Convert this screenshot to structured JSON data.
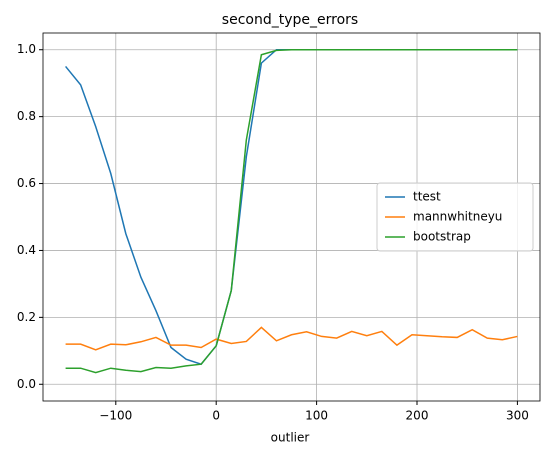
{
  "chart_data": {
    "type": "line",
    "title": "second_type_errors",
    "x_label": "outlier",
    "x": [
      -150,
      -135,
      -120,
      -105,
      -90,
      -75,
      -60,
      -45,
      -30,
      -15,
      0,
      15,
      30,
      45,
      60,
      75,
      90,
      105,
      120,
      135,
      150,
      165,
      180,
      195,
      210,
      225,
      240,
      255,
      270,
      285,
      300
    ],
    "series": [
      {
        "name": "ttest",
        "color": "#1f77b4",
        "values": [
          0.95,
          0.895,
          0.77,
          0.63,
          0.45,
          0.32,
          0.22,
          0.11,
          0.075,
          0.06,
          0.115,
          0.28,
          0.68,
          0.96,
          1.0,
          1.0,
          1.0,
          1.0,
          1.0,
          1.0,
          1.0,
          1.0,
          1.0,
          1.0,
          1.0,
          1.0,
          1.0,
          1.0,
          1.0,
          1.0,
          1.0
        ]
      },
      {
        "name": "mannwhitneyu",
        "color": "#ff7f0e",
        "values": [
          0.12,
          0.12,
          0.103,
          0.12,
          0.118,
          0.127,
          0.14,
          0.117,
          0.117,
          0.11,
          0.135,
          0.122,
          0.128,
          0.17,
          0.13,
          0.148,
          0.157,
          0.143,
          0.138,
          0.158,
          0.145,
          0.158,
          0.117,
          0.148,
          0.145,
          0.142,
          0.14,
          0.163,
          0.138,
          0.133,
          0.143
        ]
      },
      {
        "name": "bootstrap",
        "color": "#2ca02c",
        "values": [
          0.048,
          0.048,
          0.035,
          0.048,
          0.042,
          0.038,
          0.05,
          0.048,
          0.055,
          0.06,
          0.115,
          0.28,
          0.73,
          0.985,
          0.998,
          1.0,
          1.0,
          1.0,
          1.0,
          1.0,
          1.0,
          1.0,
          1.0,
          1.0,
          1.0,
          1.0,
          1.0,
          1.0,
          1.0,
          1.0,
          1.0
        ]
      }
    ],
    "xlim": [
      -172.5,
      322.5
    ],
    "ylim": [
      -0.05,
      1.05
    ],
    "xticks": [
      {
        "value": -100,
        "label": "−100"
      },
      0,
      100,
      200,
      300
    ],
    "yticks": [
      {
        "value": 0,
        "label": "0.0"
      },
      {
        "value": 0.2,
        "label": "0.2"
      },
      {
        "value": 0.4,
        "label": "0.4"
      },
      {
        "value": 0.6,
        "label": "0.6"
      },
      {
        "value": 0.8,
        "label": "0.8"
      },
      {
        "value": 1,
        "label": "1.0"
      }
    ],
    "grid": true,
    "legend": "center right"
  }
}
